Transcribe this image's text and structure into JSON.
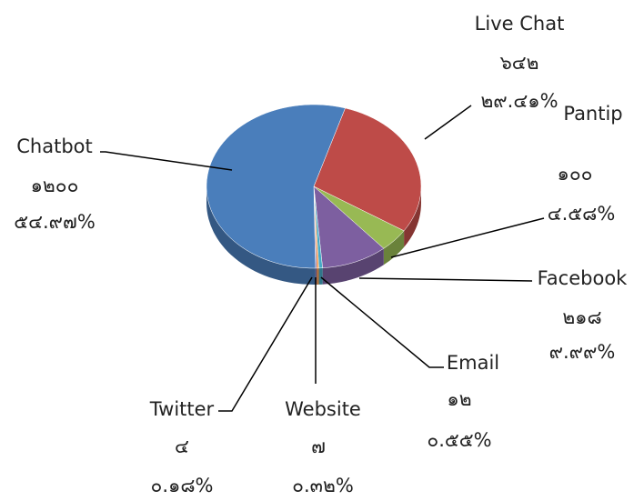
{
  "chart_data": {
    "type": "pie3d",
    "categories": [
      "Live Chat",
      "Pantip",
      "Facebook",
      "Email",
      "Website",
      "Twitter",
      "Chatbot"
    ],
    "values": [
      642,
      100,
      218,
      12,
      7,
      4,
      1200
    ],
    "value_labels": [
      "๖๔๒",
      "๑๐๐",
      "๒๑๘",
      "๑๒",
      "๗",
      "๔",
      "๑๒๐๐"
    ],
    "percents": [
      29.41,
      4.58,
      9.99,
      0.55,
      0.32,
      0.18,
      54.97
    ],
    "percent_labels": [
      "๒๙.๔๑%",
      "๔.๕๘%",
      "๙.๙๙%",
      "๐.๕๕%",
      "๐.๓๒%",
      "๐.๑๘%",
      "๕๔.๙๗%"
    ],
    "colors": [
      "#be4b48",
      "#98b954",
      "#7d5fa0",
      "#46aac5",
      "#f69546",
      "#8064a2",
      "#4a7ebb"
    ]
  }
}
